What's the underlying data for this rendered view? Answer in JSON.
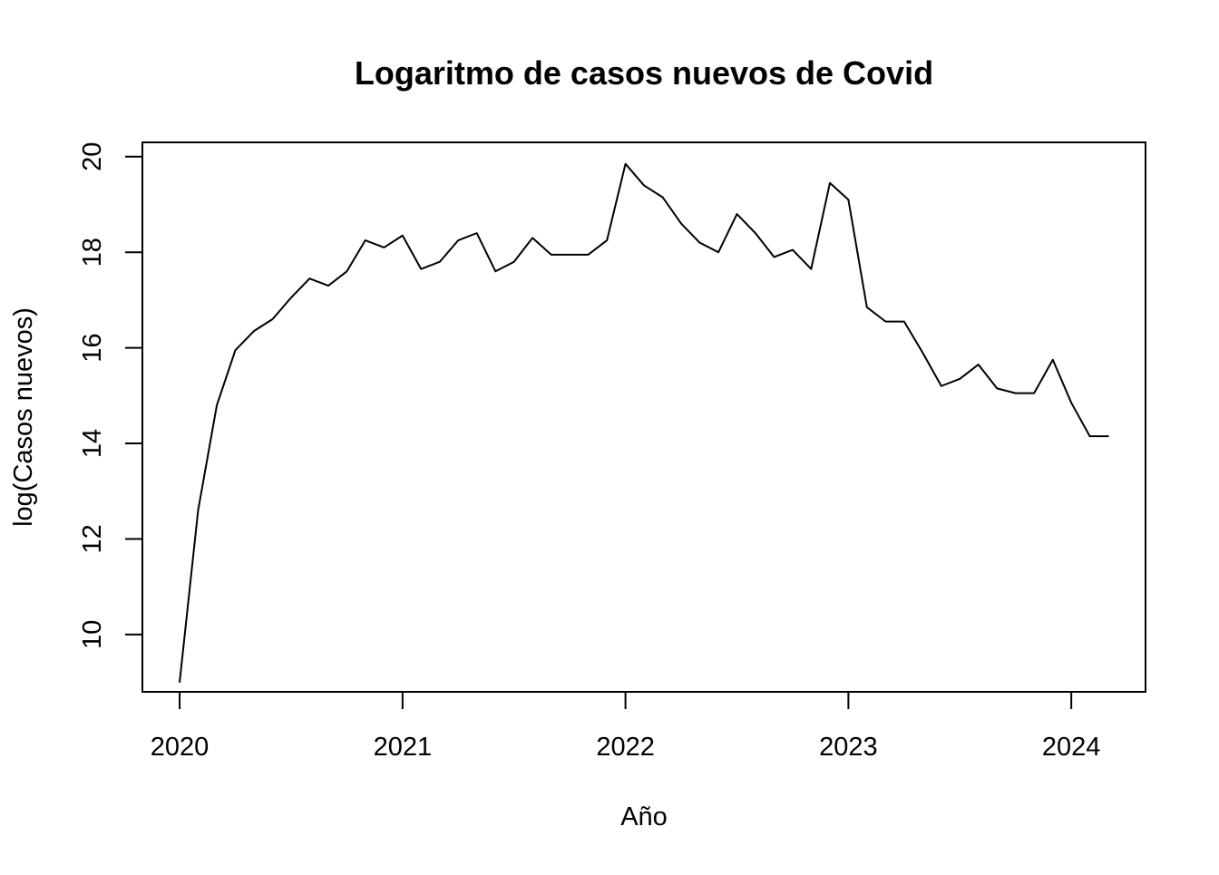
{
  "chart_data": {
    "type": "line",
    "title": "Logaritmo de casos nuevos de Covid",
    "xlabel": "Año",
    "ylabel": "log(Casos nuevos)",
    "x_ticks": [
      2020,
      2021,
      2022,
      2023,
      2024
    ],
    "y_ticks": [
      10,
      12,
      14,
      16,
      18,
      20
    ],
    "xlim": [
      2019.833,
      2024.333
    ],
    "ylim": [
      8.8,
      20.3
    ],
    "grid": false,
    "legend": "none",
    "colors": {
      "line": "#000000",
      "axis": "#000000",
      "background": "#ffffff"
    },
    "series": [
      {
        "x": [
          2020.0,
          2020.083,
          2020.167,
          2020.25,
          2020.333,
          2020.417,
          2020.5,
          2020.583,
          2020.667,
          2020.75,
          2020.833,
          2020.917,
          2021.0,
          2021.083,
          2021.167,
          2021.25,
          2021.333,
          2021.417,
          2021.5,
          2021.583,
          2021.667,
          2021.75,
          2021.833,
          2021.917,
          2022.0,
          2022.083,
          2022.167,
          2022.25,
          2022.333,
          2022.417,
          2022.5,
          2022.583,
          2022.667,
          2022.75,
          2022.833,
          2022.917,
          2023.0,
          2023.083,
          2023.167,
          2023.25,
          2023.333,
          2023.417,
          2023.5,
          2023.583,
          2023.667,
          2023.75,
          2023.833,
          2023.917,
          2024.0,
          2024.083,
          2024.167
        ],
        "y": [
          9.0,
          12.6,
          14.8,
          15.95,
          16.35,
          16.6,
          17.05,
          17.45,
          17.3,
          17.6,
          18.25,
          18.1,
          18.35,
          17.65,
          17.8,
          18.25,
          18.4,
          17.6,
          17.8,
          18.3,
          17.95,
          17.95,
          17.95,
          18.25,
          19.85,
          19.4,
          19.15,
          18.6,
          18.2,
          18.0,
          18.8,
          18.4,
          17.9,
          18.05,
          17.65,
          19.45,
          19.1,
          16.85,
          16.55,
          16.55,
          15.9,
          15.2,
          15.35,
          15.65,
          15.15,
          15.05,
          15.05,
          15.75,
          14.85,
          14.15,
          14.15
        ]
      }
    ]
  }
}
